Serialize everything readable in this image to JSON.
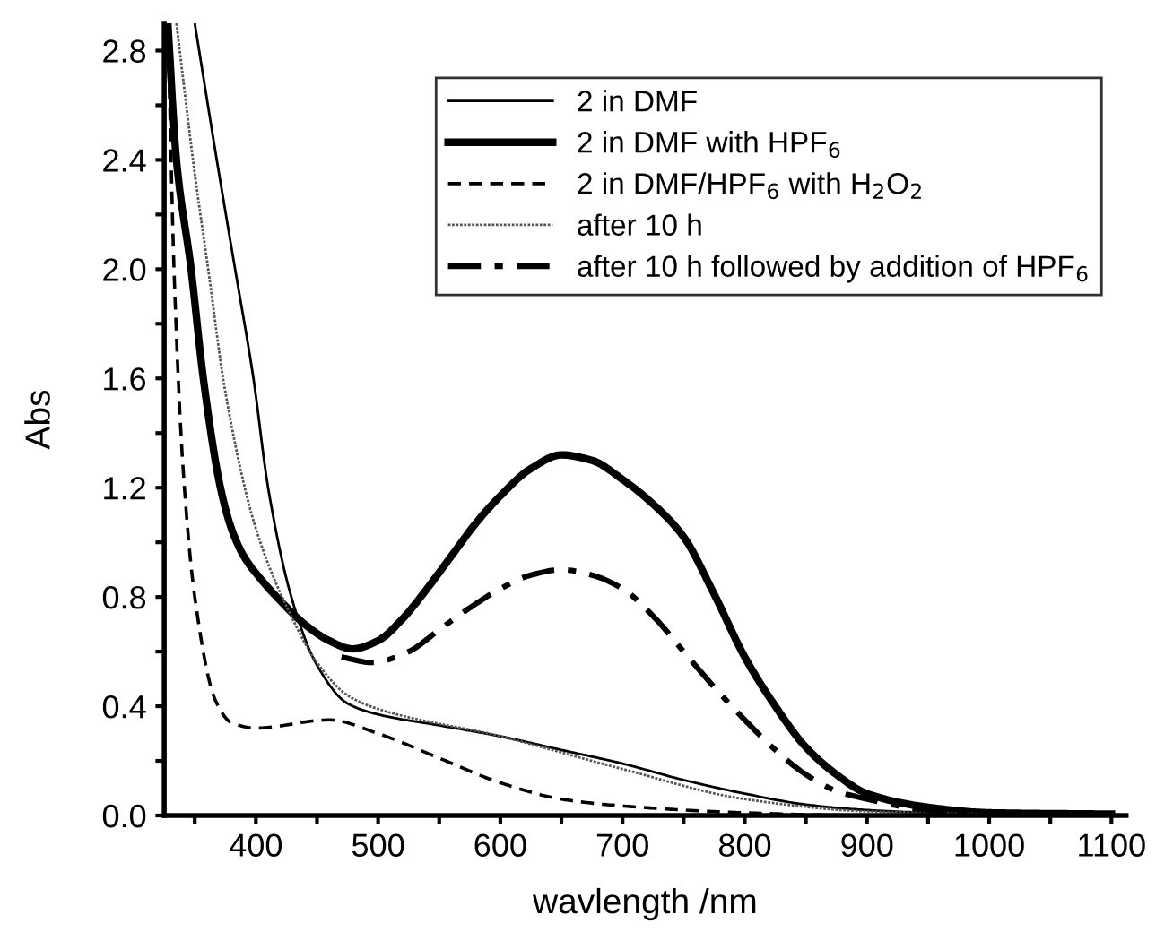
{
  "chart_data": {
    "type": "line",
    "xlabel": "wavlength /nm",
    "ylabel": "Abs",
    "xlim": [
      325,
      1112
    ],
    "ylim": [
      0,
      2.9
    ],
    "xticks": [
      {
        "value": 350,
        "label": null
      },
      400,
      {
        "value": 450,
        "label": null
      },
      500,
      {
        "value": 550,
        "label": null
      },
      600,
      {
        "value": 650,
        "label": null
      },
      700,
      {
        "value": 750,
        "label": null
      },
      800,
      {
        "value": 850,
        "label": null
      },
      900,
      {
        "value": 950,
        "label": null
      },
      1000,
      {
        "value": 1050,
        "label": null
      },
      1100
    ],
    "yticks": [
      {
        "value": 0,
        "label": "0.0"
      },
      {
        "value": 0.2,
        "label": null
      },
      0.4,
      {
        "value": 0.6,
        "label": null
      },
      0.8,
      {
        "value": 1.0,
        "label": null
      },
      1.2,
      {
        "value": 1.4,
        "label": null
      },
      1.6,
      {
        "value": 1.8,
        "label": null
      },
      {
        "value": 2.0,
        "label": "2.0"
      },
      {
        "value": 2.2,
        "label": null
      },
      2.4,
      {
        "value": 2.6,
        "label": null
      },
      2.8
    ],
    "grid": false,
    "legend": "top right",
    "marker": "none",
    "series": [
      {
        "name": "2 in DMF",
        "color": "#000000",
        "line_style": "solid",
        "x": [
          350,
          368,
          383,
          398,
          410,
          429,
          450,
          475,
          500,
          550,
          600,
          650,
          700,
          750,
          800,
          850,
          900,
          950,
          1000,
          1100
        ],
        "values": [
          2.9,
          2.4,
          2.0,
          1.6,
          1.2,
          0.8,
          0.55,
          0.41,
          0.37,
          0.33,
          0.29,
          0.24,
          0.19,
          0.13,
          0.08,
          0.04,
          0.02,
          0.01,
          0.005,
          0.0
        ]
      },
      {
        "name": "2 in DMF with HPF$_{6}$",
        "color": "#000000",
        "line_style": "solid",
        "x": [
          328,
          335,
          347,
          357,
          371,
          380,
          390,
          405,
          417,
          440,
          460,
          479,
          500,
          520,
          540,
          560,
          580,
          600,
          625,
          650,
          675,
          700,
          725,
          750,
          775,
          800,
          825,
          850,
          875,
          900,
          950,
          1000,
          1100
        ],
        "values": [
          2.9,
          2.4,
          2.0,
          1.6,
          1.2,
          1.05,
          0.95,
          0.86,
          0.8,
          0.7,
          0.64,
          0.61,
          0.64,
          0.72,
          0.83,
          0.95,
          1.07,
          1.17,
          1.27,
          1.32,
          1.3,
          1.23,
          1.14,
          1.02,
          0.81,
          0.58,
          0.4,
          0.25,
          0.15,
          0.08,
          0.03,
          0.01,
          0.005
        ]
      },
      {
        "name": "2 in DMF/HPF$_{6}$ with H$_{2}$O$_{2}$",
        "color": "#000000",
        "line_style": "dashed",
        "x": [
          328,
          333,
          340,
          350,
          367,
          380,
          400,
          460,
          500,
          550,
          600,
          650,
          700,
          800,
          900,
          1000,
          1100
        ],
        "values": [
          2.9,
          2.0,
          1.3,
          0.8,
          0.42,
          0.34,
          0.32,
          0.35,
          0.3,
          0.21,
          0.12,
          0.06,
          0.035,
          0.01,
          0.0,
          0.0,
          0.0
        ]
      },
      {
        "name": "after 10 h",
        "color": "#555555",
        "line_style": "dotted",
        "x": [
          335,
          350,
          361,
          375,
          400,
          430,
          450,
          475,
          500,
          600,
          700,
          800,
          900,
          1000,
          1100
        ],
        "values": [
          2.9,
          2.35,
          2.0,
          1.55,
          1.05,
          0.72,
          0.56,
          0.44,
          0.39,
          0.29,
          0.17,
          0.06,
          0.015,
          0.005,
          0.0
        ]
      },
      {
        "name": "after 10 h followed by addition of HPF$_{6}$",
        "color": "#000000",
        "line_style": "dashdot",
        "x": [
          470,
          495,
          525,
          550,
          575,
          600,
          625,
          650,
          675,
          700,
          725,
          750,
          775,
          800,
          825,
          850,
          875,
          900,
          950,
          1000,
          1100
        ],
        "values": [
          0.58,
          0.56,
          0.6,
          0.68,
          0.76,
          0.83,
          0.88,
          0.9,
          0.88,
          0.83,
          0.73,
          0.6,
          0.47,
          0.35,
          0.24,
          0.15,
          0.09,
          0.06,
          0.02,
          0.01,
          0.005
        ]
      }
    ]
  }
}
